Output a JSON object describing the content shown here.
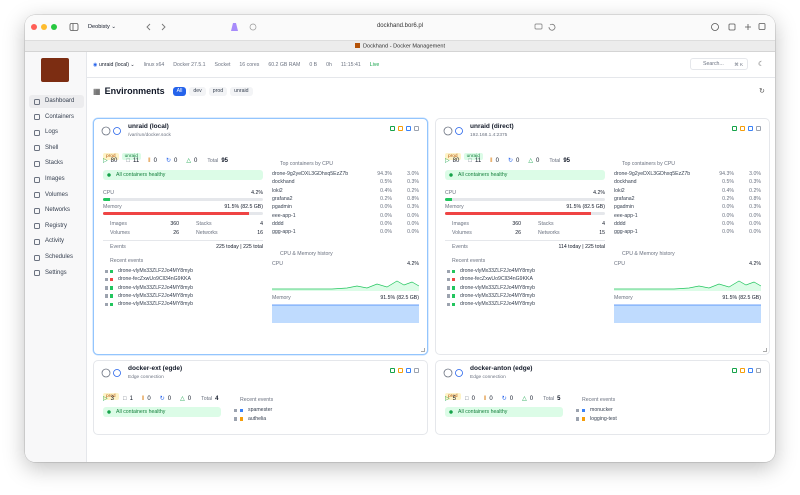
{
  "browser": {
    "profile": "Deobisty",
    "url": "dockhand.bor6.pl",
    "tab_title": "Dockhand - Docker Management"
  },
  "sidebar": {
    "logo": "DOCKHAND",
    "nav": [
      "Dashboard",
      "Containers",
      "Logs",
      "Shell",
      "Stacks",
      "Images",
      "Volumes",
      "Networks",
      "Registry",
      "Activity",
      "Schedules",
      "Settings"
    ]
  },
  "topbar": {
    "environment": "unraid (local)",
    "platform": "linux x64",
    "docker": "Docker 27.5.1",
    "connection": "Socket",
    "cores": "16 cores",
    "ram": "60.2 GB RAM",
    "disk": "0 B",
    "uptime": "0h",
    "time": "11:15:41",
    "live": "Live",
    "search": "Search...",
    "shortcut": "⌘ K"
  },
  "header": {
    "title": "Environments",
    "filters": [
      "All",
      "dev",
      "prod",
      "unraid"
    ]
  },
  "labels": {
    "total": "Total",
    "cpu": "CPU",
    "memory": "Memory",
    "images": "Images",
    "stacks": "Stacks",
    "volumes": "Volumes",
    "networks": "Networks",
    "events": "Events",
    "recent_events": "Recent events",
    "top_containers": "Top containers by CPU",
    "history": "CPU & Memory history"
  },
  "environments": [
    {
      "name": "unraid (local)",
      "address": "/var/run/docker.sock",
      "tags": [
        "prod",
        "unraid"
      ],
      "status": {
        "running": 80,
        "stopped": 11,
        "paused": 0,
        "restarting": 0,
        "unhealthy": 0,
        "total": 95
      },
      "health": "All containers healthy",
      "cpu": {
        "value": 4.2,
        "label": "4.2%"
      },
      "memory": {
        "value": 91.5,
        "label": "91.5% (82.5 GB)"
      },
      "images": 360,
      "stacks": 4,
      "volumes": 26,
      "networks": 16,
      "events": "225 today | 225 total",
      "top_containers": [
        {
          "name": "drone-9g2yeDXL3GDhxq5EzZ7b",
          "cpu": "94.3%",
          "memory": "3.0%"
        },
        {
          "name": "dockhand",
          "cpu": "0.5%",
          "memory": "0.3%"
        },
        {
          "name": "loki2",
          "cpu": "0.4%",
          "memory": "0.2%"
        },
        {
          "name": "grafana2",
          "cpu": "0.2%",
          "memory": "0.8%"
        },
        {
          "name": "pgadmin",
          "cpu": "0.0%",
          "memory": "0.3%"
        },
        {
          "name": "eee-app-1",
          "cpu": "0.0%",
          "memory": "0.0%"
        },
        {
          "name": "dddd",
          "cpu": "0.0%",
          "memory": "0.0%"
        },
        {
          "name": "ggg-app-1",
          "cpu": "0.0%",
          "memory": "0.0%"
        }
      ],
      "recent_events": [
        "drone-vlyMx33ZLF2Jo4MY8myb",
        "drone-fecZxwUo9Cll34nG9KKA",
        "drone-vlyMx33ZLF2Jo4MY8myb",
        "drone-vlyMx33ZLF2Jo4MY8myb",
        "drone-vlyMx33ZLF2Jo4MY8myb"
      ]
    },
    {
      "name": "unraid (direct)",
      "address": "192.168.1.4:2375",
      "tags": [
        "prod",
        "unraid"
      ],
      "status": {
        "running": 80,
        "stopped": 11,
        "paused": 0,
        "restarting": 0,
        "unhealthy": 0,
        "total": 95
      },
      "health": "All containers healthy",
      "cpu": {
        "value": 4.2,
        "label": "4.2%"
      },
      "memory": {
        "value": 91.5,
        "label": "91.5% (82.5 GB)"
      },
      "images": 360,
      "stacks": 4,
      "volumes": 26,
      "networks": 15,
      "events": "114 today | 225 total",
      "top_containers": [
        {
          "name": "drone-9g2yeDXL3GDhxq5EzZ7b",
          "cpu": "94.3%",
          "memory": "3.0%"
        },
        {
          "name": "dockhand",
          "cpu": "0.5%",
          "memory": "0.3%"
        },
        {
          "name": "loki2",
          "cpu": "0.4%",
          "memory": "0.2%"
        },
        {
          "name": "grafana2",
          "cpu": "0.2%",
          "memory": "0.8%"
        },
        {
          "name": "pgadmin",
          "cpu": "0.0%",
          "memory": "0.3%"
        },
        {
          "name": "eee-app-1",
          "cpu": "0.0%",
          "memory": "0.0%"
        },
        {
          "name": "dddd",
          "cpu": "0.0%",
          "memory": "0.0%"
        },
        {
          "name": "ggg-app-1",
          "cpu": "0.0%",
          "memory": "0.0%"
        }
      ],
      "recent_events": [
        "drone-vlyMx33ZLF2Jo4MY8myb",
        "drone-fecZxwUo9Cll34nG9KKA",
        "drone-vlyMx33ZLF2Jo4MY8myb",
        "drone-vlyMx33ZLF2Jo4MY8myb",
        "drone-vlyMx33ZLF2Jo4MY8myb"
      ]
    },
    {
      "name": "docker-ext (egde)",
      "address": "Edge connection",
      "tags": [
        "prod"
      ],
      "status": {
        "running": 3,
        "stopped": 1,
        "paused": 0,
        "restarting": 0,
        "unhealthy": 0,
        "total": 4
      },
      "health": "All containers healthy",
      "recent_events": [
        "spamester",
        "authelia"
      ]
    },
    {
      "name": "docker-anton (edge)",
      "address": "Edge connection",
      "tags": [
        "prod"
      ],
      "status": {
        "running": 5,
        "stopped": 0,
        "paused": 0,
        "restarting": 0,
        "unhealthy": 0,
        "total": 5
      },
      "health": "All containers healthy",
      "recent_events": [
        "monucker",
        "logging-test"
      ]
    }
  ]
}
